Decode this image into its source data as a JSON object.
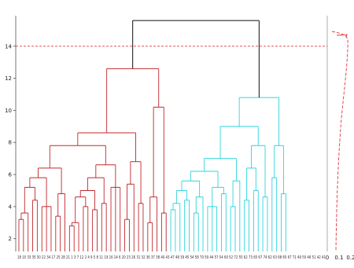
{
  "chart_data": {
    "type": "dendrogram",
    "title": "",
    "xlabel": "",
    "ylabel": "",
    "ylim": [
      1.2,
      15.9
    ],
    "y_ticks": [
      "2",
      "4",
      "6",
      "8",
      "10",
      "12",
      "14"
    ],
    "threshold": 14,
    "leaf_labels_text": "18 10 33 35 30 22 34 17 25 28 21 1 3 7 12 2 4 9 5 8 11 19 16 14 6 20 23 26 31 32 36 37 38 40 43 47 48 39 45 54 58 70 59 44 57 54 60 52 72 55 62 73 65 67 74 62 63 68 65 67 71 49 50 46 51 42 41",
    "side_axis_ticks": [
      "0",
      "0.1",
      "0.2"
    ],
    "colors": {
      "top": "#111111",
      "red_cluster": "#c0282c",
      "red_dark": "#8e0f12",
      "cyan_cluster": "#2fd4dc",
      "threshold": "#e0393e",
      "axis": "#555555"
    }
  }
}
